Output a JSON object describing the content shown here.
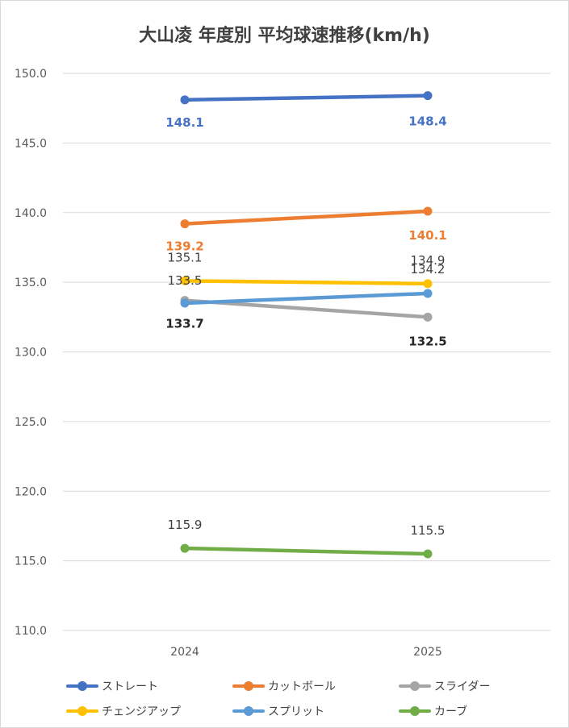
{
  "chart_data": {
    "type": "line",
    "title": "大山凌 年度別 平均球速推移(km/h)",
    "xlabel": "",
    "ylabel": "",
    "categories": [
      "2024",
      "2025"
    ],
    "ylim": [
      110,
      150
    ],
    "yticks": [
      "110.0",
      "115.0",
      "120.0",
      "125.0",
      "130.0",
      "135.0",
      "140.0",
      "145.0",
      "150.0"
    ],
    "grid": true,
    "legend_position": "bottom",
    "series": [
      {
        "name": "ストレート",
        "values": [
          148.1,
          148.4
        ],
        "labels": [
          "148.1",
          "148.4"
        ],
        "color": "#4472c4",
        "label_color": "#4472c4"
      },
      {
        "name": "カットボール",
        "values": [
          139.2,
          140.1
        ],
        "labels": [
          "139.2",
          "140.1"
        ],
        "color": "#ed7d31",
        "label_color": "#ed7d31"
      },
      {
        "name": "スライダー",
        "values": [
          133.7,
          132.5
        ],
        "labels": [
          "133.7",
          "132.5"
        ],
        "color": "#a5a5a5",
        "label_color": "#262626"
      },
      {
        "name": "チェンジアップ",
        "values": [
          135.1,
          134.9
        ],
        "labels": [
          "135.1",
          "134.9"
        ],
        "color": "#ffc000",
        "label_color": "#404040"
      },
      {
        "name": "スプリット",
        "values": [
          133.5,
          134.2
        ],
        "labels": [
          "133.5",
          "134.2"
        ],
        "color": "#5b9bd5",
        "label_color": "#404040"
      },
      {
        "name": "カーブ",
        "values": [
          115.9,
          115.5
        ],
        "labels": [
          "115.9",
          "115.5"
        ],
        "color": "#70ad47",
        "label_color": "#404040"
      }
    ]
  }
}
